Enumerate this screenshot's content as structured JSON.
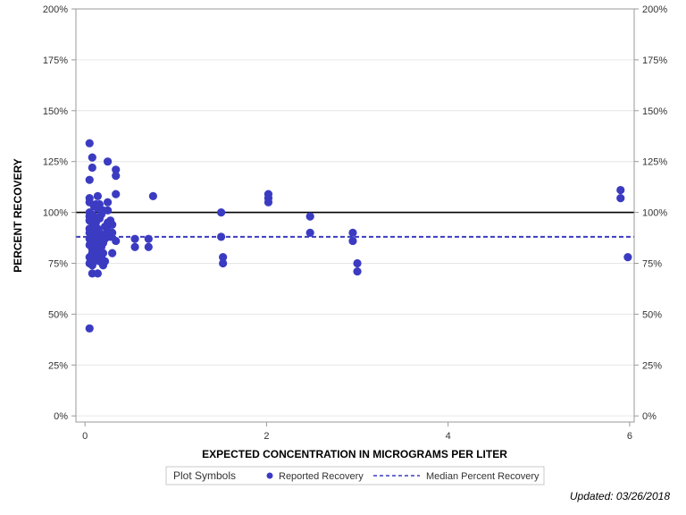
{
  "chart_data": {
    "type": "scatter",
    "xlabel": "EXPECTED CONCENTRATION IN MICROGRAMS PER LITER",
    "ylabel": "PERCENT RECOVERY",
    "xlim": [
      -0.1,
      6.05
    ],
    "ylim": [
      -3,
      200
    ],
    "x_ticks": [
      0,
      2,
      4,
      6
    ],
    "x_tick_labels": [
      "0",
      "2",
      "4",
      "6"
    ],
    "y_ticks": [
      0,
      25,
      50,
      75,
      100,
      125,
      150,
      175,
      200
    ],
    "y_tick_labels": [
      "0%",
      "25%",
      "50%",
      "75%",
      "100%",
      "125%",
      "150%",
      "175%",
      "200%"
    ],
    "grid": "horizontal",
    "reference_lines": [
      {
        "name": "100%",
        "y": 100,
        "style": "solid",
        "color": "#000000"
      },
      {
        "name": "Median Percent Recovery",
        "y": 88,
        "style": "dashed",
        "color": "#3b3bc2"
      }
    ],
    "series": [
      {
        "name": "Reported Recovery",
        "color": "#3b3bc2",
        "points": [
          [
            0.05,
            134
          ],
          [
            0.05,
            116
          ],
          [
            0.05,
            107
          ],
          [
            0.05,
            105
          ],
          [
            0.05,
            100
          ],
          [
            0.05,
            98
          ],
          [
            0.05,
            96
          ],
          [
            0.05,
            92
          ],
          [
            0.05,
            90
          ],
          [
            0.05,
            87
          ],
          [
            0.05,
            84
          ],
          [
            0.05,
            78
          ],
          [
            0.05,
            75
          ],
          [
            0.05,
            43
          ],
          [
            0.08,
            127
          ],
          [
            0.08,
            122
          ],
          [
            0.08,
            99
          ],
          [
            0.08,
            95
          ],
          [
            0.08,
            91
          ],
          [
            0.08,
            88
          ],
          [
            0.08,
            85
          ],
          [
            0.08,
            82
          ],
          [
            0.08,
            80
          ],
          [
            0.08,
            77
          ],
          [
            0.08,
            74
          ],
          [
            0.08,
            70
          ],
          [
            0.1,
            103
          ],
          [
            0.1,
            98
          ],
          [
            0.1,
            93
          ],
          [
            0.1,
            89
          ],
          [
            0.1,
            86
          ],
          [
            0.1,
            83
          ],
          [
            0.1,
            80
          ],
          [
            0.1,
            76
          ],
          [
            0.12,
            104
          ],
          [
            0.12,
            95
          ],
          [
            0.12,
            90
          ],
          [
            0.12,
            87
          ],
          [
            0.12,
            84
          ],
          [
            0.12,
            81
          ],
          [
            0.12,
            78
          ],
          [
            0.14,
            108
          ],
          [
            0.14,
            102
          ],
          [
            0.14,
            92
          ],
          [
            0.14,
            86
          ],
          [
            0.14,
            79
          ],
          [
            0.14,
            70
          ],
          [
            0.16,
            104
          ],
          [
            0.16,
            97
          ],
          [
            0.16,
            90
          ],
          [
            0.16,
            85
          ],
          [
            0.16,
            81
          ],
          [
            0.16,
            76
          ],
          [
            0.18,
            99
          ],
          [
            0.18,
            88
          ],
          [
            0.18,
            83
          ],
          [
            0.18,
            78
          ],
          [
            0.2,
            101
          ],
          [
            0.2,
            89
          ],
          [
            0.2,
            85
          ],
          [
            0.2,
            80
          ],
          [
            0.2,
            74
          ],
          [
            0.22,
            93
          ],
          [
            0.22,
            87
          ],
          [
            0.22,
            76
          ],
          [
            0.25,
            125
          ],
          [
            0.25,
            105
          ],
          [
            0.25,
            101
          ],
          [
            0.25,
            95
          ],
          [
            0.25,
            91
          ],
          [
            0.28,
            96
          ],
          [
            0.28,
            88
          ],
          [
            0.3,
            94
          ],
          [
            0.3,
            90
          ],
          [
            0.3,
            80
          ],
          [
            0.34,
            121
          ],
          [
            0.34,
            118
          ],
          [
            0.34,
            109
          ],
          [
            0.34,
            86
          ],
          [
            0.55,
            87
          ],
          [
            0.55,
            83
          ],
          [
            0.7,
            87
          ],
          [
            0.7,
            83
          ],
          [
            0.75,
            108
          ],
          [
            1.5,
            100
          ],
          [
            1.5,
            88
          ],
          [
            1.52,
            78
          ],
          [
            1.52,
            75
          ],
          [
            2.02,
            109
          ],
          [
            2.02,
            107
          ],
          [
            2.02,
            105
          ],
          [
            2.48,
            98
          ],
          [
            2.48,
            90
          ],
          [
            2.95,
            90
          ],
          [
            2.95,
            86
          ],
          [
            3.0,
            75
          ],
          [
            3.0,
            71
          ],
          [
            5.9,
            111
          ],
          [
            5.9,
            107
          ],
          [
            5.98,
            78
          ]
        ]
      }
    ]
  },
  "legend": {
    "title": "Plot Symbols",
    "items": [
      {
        "label": "Reported Recovery",
        "symbol": "dot"
      },
      {
        "label": "Median Percent Recovery",
        "symbol": "dashed-line"
      }
    ]
  },
  "footer": {
    "updated": "Updated: 03/26/2018"
  }
}
